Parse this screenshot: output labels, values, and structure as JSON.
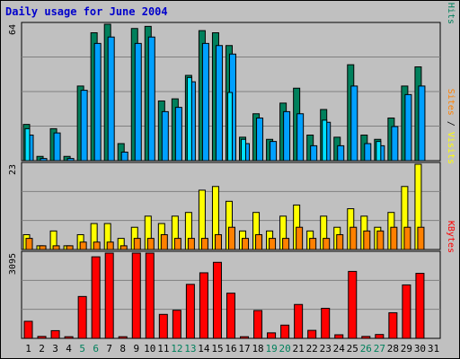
{
  "title": "Daily usage for June 2004",
  "colors": {
    "hits": "#00805c",
    "files": "#00a0ff",
    "pages": "#00e0ff",
    "visits": "#ffff00",
    "sites": "#ff8000",
    "kbytes": "#ff0000",
    "weekend_label": "#00805c",
    "weekday_label": "#000000",
    "title": "#0000cc",
    "background": "#c0c0c0"
  },
  "chart_data": [
    {
      "type": "bar",
      "panel": "top",
      "ymax_label": "64",
      "ylim": [
        0,
        64
      ],
      "right_label_parts": [
        "Pages",
        " / ",
        "Files",
        " / ",
        "Hits"
      ],
      "categories": [
        "1",
        "2",
        "3",
        "4",
        "5",
        "6",
        "7",
        "8",
        "9",
        "10",
        "11",
        "12",
        "13",
        "14",
        "15",
        "16",
        "17",
        "18",
        "19",
        "20",
        "21",
        "22",
        "23",
        "24",
        "25",
        "26",
        "27",
        "28",
        "29",
        "30",
        "31"
      ],
      "series": [
        {
          "name": "Hits",
          "values": [
            17,
            2,
            15,
            2,
            35,
            60,
            64,
            8,
            62,
            63,
            28,
            29,
            40,
            61,
            60,
            54,
            11,
            22,
            10,
            27,
            34,
            12,
            24,
            11,
            45,
            12,
            10,
            20,
            35,
            44,
            0
          ]
        },
        {
          "name": "Files",
          "values": [
            12,
            1,
            13,
            1,
            33,
            55,
            58,
            4,
            55,
            58,
            23,
            25,
            37,
            55,
            54,
            50,
            8,
            20,
            9,
            23,
            22,
            7,
            18,
            7,
            35,
            8,
            7,
            16,
            31,
            35,
            0
          ]
        },
        {
          "name": "Pages",
          "values": [
            15,
            0,
            0,
            0,
            0,
            0,
            0,
            0,
            0,
            0,
            0,
            0,
            39,
            0,
            0,
            32,
            10,
            0,
            0,
            0,
            0,
            0,
            19,
            0,
            0,
            0,
            9,
            0,
            0,
            0,
            0
          ]
        }
      ]
    },
    {
      "type": "bar",
      "panel": "middle",
      "ymax_label": "23",
      "ylim": [
        0,
        23
      ],
      "right_label_parts": [
        "Sites",
        " / ",
        "Visits"
      ],
      "categories": [
        "1",
        "2",
        "3",
        "4",
        "5",
        "6",
        "7",
        "8",
        "9",
        "10",
        "11",
        "12",
        "13",
        "14",
        "15",
        "16",
        "17",
        "18",
        "19",
        "20",
        "21",
        "22",
        "23",
        "24",
        "25",
        "26",
        "27",
        "28",
        "29",
        "30",
        "31"
      ],
      "series": [
        {
          "name": "Visits",
          "values": [
            4,
            1,
            5,
            1,
            4,
            7,
            7,
            3,
            6,
            9,
            7,
            9,
            10,
            16,
            17,
            13,
            5,
            10,
            5,
            9,
            12,
            5,
            9,
            6,
            11,
            9,
            6,
            10,
            17,
            23,
            0
          ]
        },
        {
          "name": "Sites",
          "values": [
            3,
            1,
            1,
            1,
            2,
            2,
            2,
            1,
            3,
            3,
            4,
            3,
            3,
            3,
            4,
            6,
            3,
            4,
            3,
            3,
            6,
            3,
            3,
            4,
            6,
            5,
            5,
            6,
            6,
            6,
            0
          ]
        }
      ]
    },
    {
      "type": "bar",
      "panel": "bottom",
      "ymax_label": "3095",
      "ylim": [
        0,
        3095
      ],
      "right_label_parts": [
        "KBytes"
      ],
      "categories": [
        "1",
        "2",
        "3",
        "4",
        "5",
        "6",
        "7",
        "8",
        "9",
        "10",
        "11",
        "12",
        "13",
        "14",
        "15",
        "16",
        "17",
        "18",
        "19",
        "20",
        "21",
        "22",
        "23",
        "24",
        "25",
        "26",
        "27",
        "28",
        "29",
        "30",
        "31"
      ],
      "series": [
        {
          "name": "KBytes",
          "values": [
            620,
            70,
            280,
            60,
            1520,
            2960,
            3095,
            60,
            3095,
            3095,
            870,
            1020,
            1960,
            2380,
            2760,
            1640,
            60,
            1010,
            200,
            480,
            1230,
            290,
            1090,
            130,
            2430,
            70,
            140,
            930,
            1940,
            2360,
            0
          ]
        }
      ]
    }
  ],
  "x_labels": [
    {
      "text": "1",
      "weekend": false
    },
    {
      "text": "2",
      "weekend": false
    },
    {
      "text": "3",
      "weekend": false
    },
    {
      "text": "4",
      "weekend": false
    },
    {
      "text": "5",
      "weekend": true
    },
    {
      "text": "6",
      "weekend": true
    },
    {
      "text": "7",
      "weekend": false
    },
    {
      "text": "8",
      "weekend": false
    },
    {
      "text": "9",
      "weekend": false
    },
    {
      "text": "10",
      "weekend": false
    },
    {
      "text": "11",
      "weekend": false
    },
    {
      "text": "12",
      "weekend": true
    },
    {
      "text": "13",
      "weekend": true
    },
    {
      "text": "14",
      "weekend": false
    },
    {
      "text": "15",
      "weekend": false
    },
    {
      "text": "16",
      "weekend": false
    },
    {
      "text": "17",
      "weekend": false
    },
    {
      "text": "18",
      "weekend": false
    },
    {
      "text": "19",
      "weekend": true
    },
    {
      "text": "20",
      "weekend": true
    },
    {
      "text": "21",
      "weekend": false
    },
    {
      "text": "22",
      "weekend": false
    },
    {
      "text": "23",
      "weekend": false
    },
    {
      "text": "24",
      "weekend": false
    },
    {
      "text": "25",
      "weekend": false
    },
    {
      "text": "26",
      "weekend": true
    },
    {
      "text": "27",
      "weekend": true
    },
    {
      "text": "28",
      "weekend": false
    },
    {
      "text": "29",
      "weekend": false
    },
    {
      "text": "30",
      "weekend": false
    },
    {
      "text": "31",
      "weekend": false
    }
  ]
}
